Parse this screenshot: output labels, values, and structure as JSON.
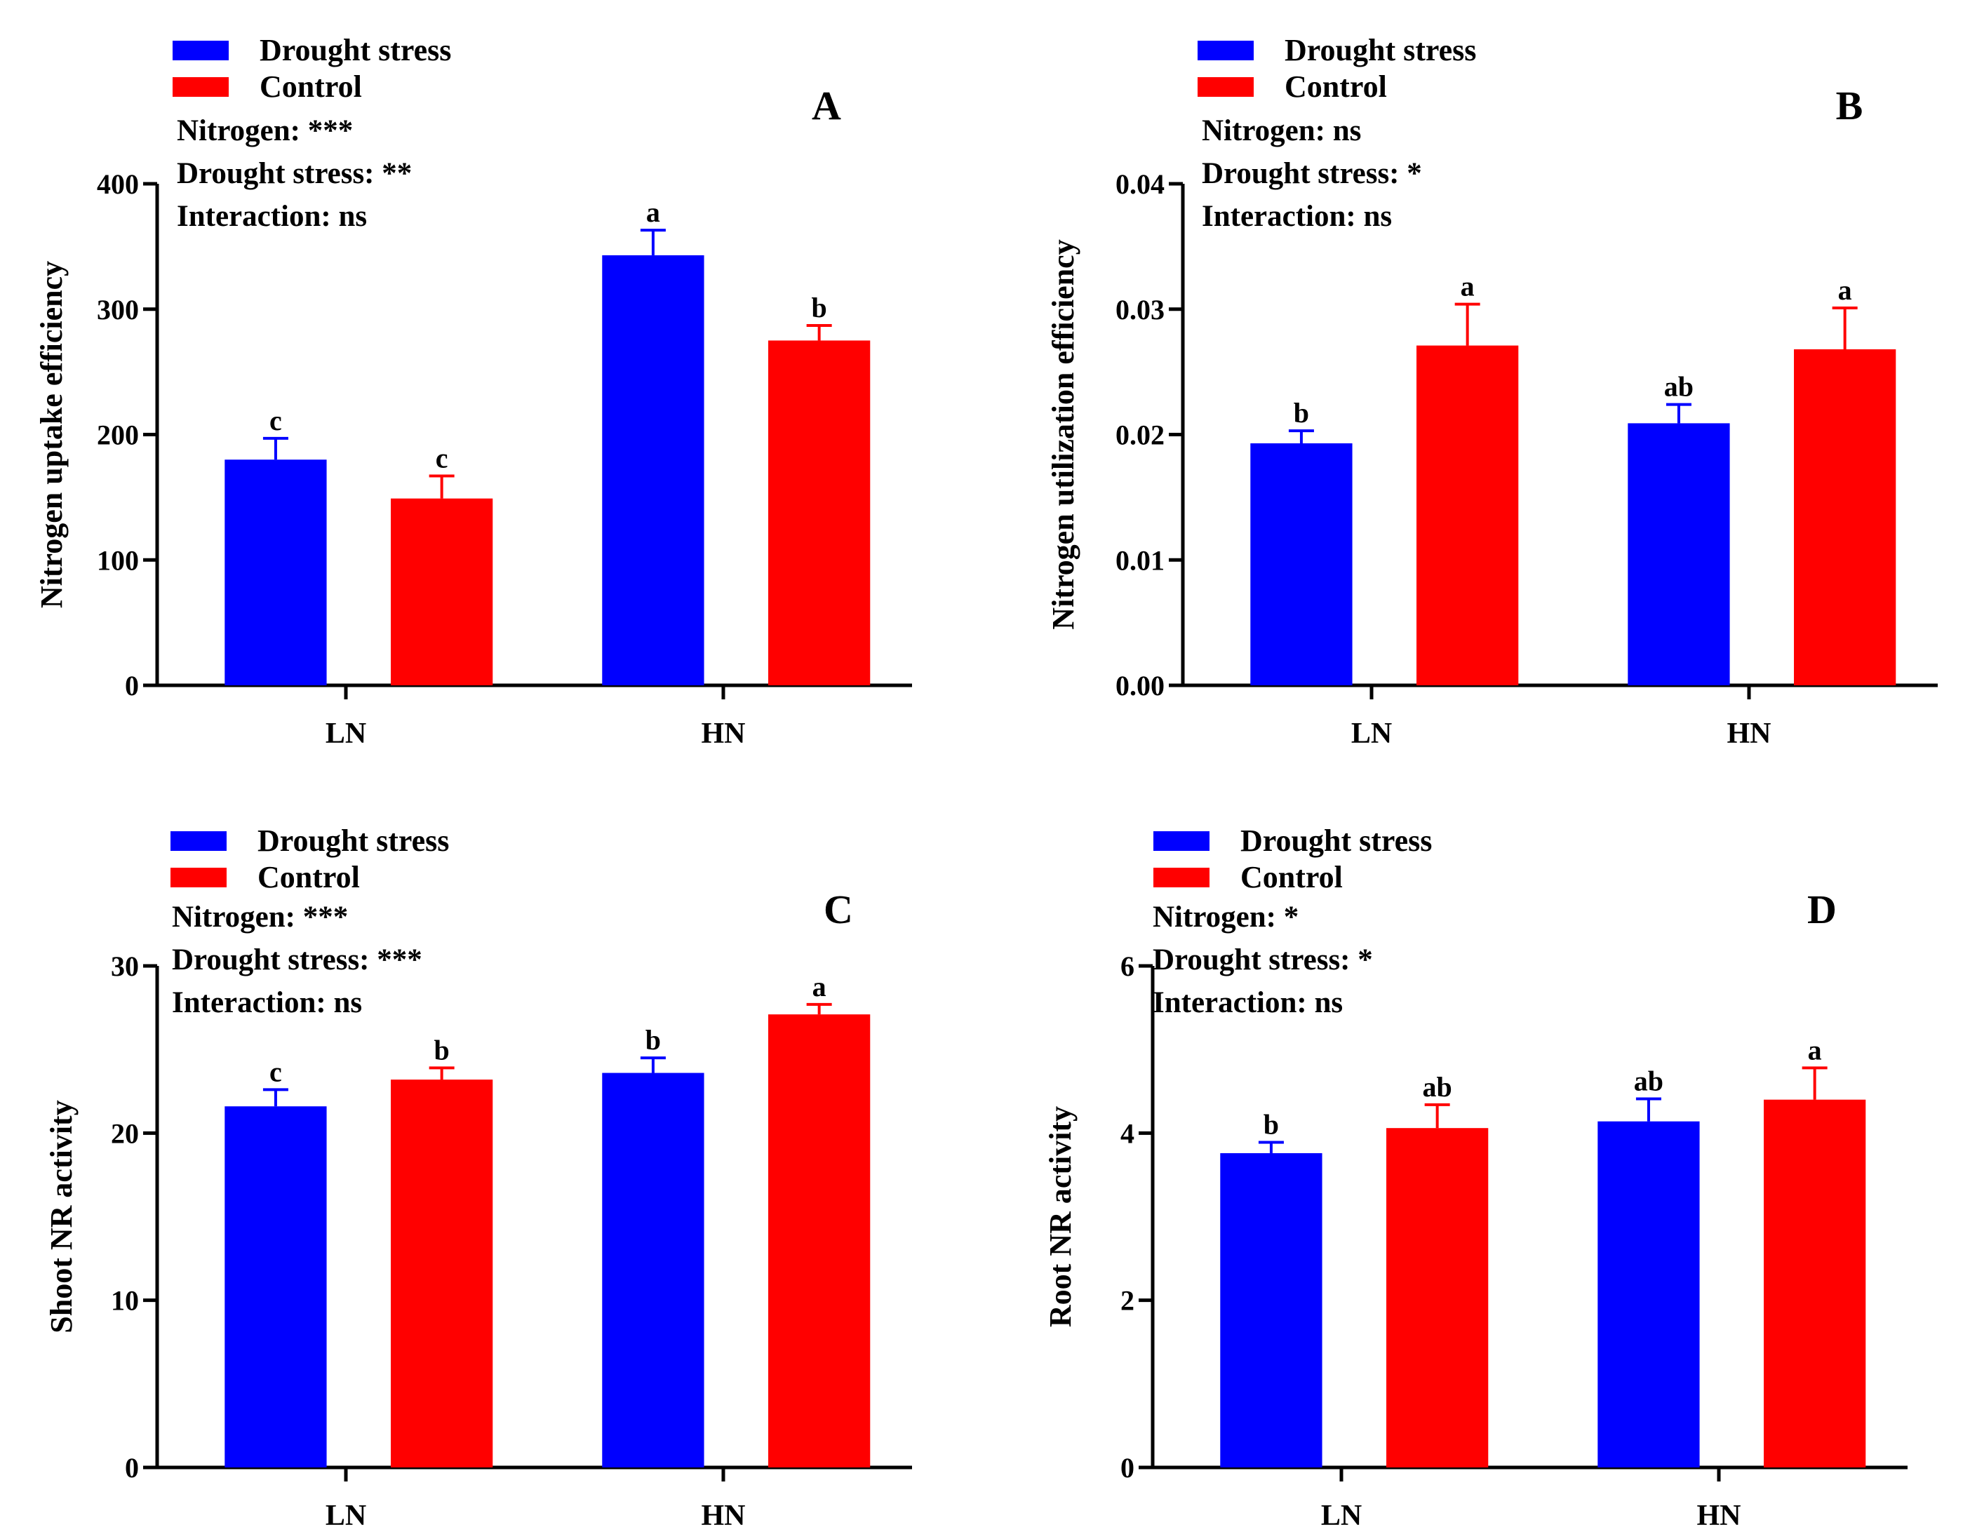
{
  "colors": {
    "drought": "#0000ff",
    "control": "#ff0000",
    "axis": "#000000"
  },
  "chart_data": [
    {
      "type": "bar",
      "panel": "A",
      "ylabel": "Nitrogen uptake efficiency",
      "categories": [
        "LN",
        "HN"
      ],
      "ylim": [
        0,
        400
      ],
      "yticks": [
        "0",
        "100",
        "200",
        "300",
        "400"
      ],
      "series": [
        {
          "name": "Drought stress",
          "values": [
            180,
            343
          ],
          "errors": [
            17,
            20
          ],
          "letters": [
            "c",
            "a"
          ]
        },
        {
          "name": "Control",
          "values": [
            149,
            275
          ],
          "errors": [
            18,
            12
          ],
          "letters": [
            "c",
            "b"
          ]
        }
      ],
      "stats": [
        "Nitrogen: ***",
        "Drought stress: **",
        "Interaction: ns"
      ],
      "legend": [
        "Drought stress",
        "Control"
      ]
    },
    {
      "type": "bar",
      "panel": "B",
      "ylabel": "Nitrogen utilization efficiency",
      "categories": [
        "LN",
        "HN"
      ],
      "ylim": [
        0,
        0.04
      ],
      "yticks": [
        "0.00",
        "0.01",
        "0.02",
        "0.03",
        "0.04"
      ],
      "series": [
        {
          "name": "Drought stress",
          "values": [
            0.0193,
            0.0209
          ],
          "errors": [
            0.001,
            0.0015
          ],
          "letters": [
            "b",
            "ab"
          ]
        },
        {
          "name": "Control",
          "values": [
            0.0271,
            0.0268
          ],
          "errors": [
            0.0033,
            0.0033
          ],
          "letters": [
            "a",
            "a"
          ]
        }
      ],
      "stats": [
        "Nitrogen: ns",
        "Drought stress: *",
        "Interaction: ns"
      ],
      "legend": [
        "Drought stress",
        "Control"
      ]
    },
    {
      "type": "bar",
      "panel": "C",
      "ylabel": "Shoot NR activity",
      "categories": [
        "LN",
        "HN"
      ],
      "ylim": [
        0,
        30
      ],
      "yticks": [
        "0",
        "10",
        "20",
        "30"
      ],
      "series": [
        {
          "name": "Drought stress",
          "values": [
            21.6,
            23.6
          ],
          "errors": [
            1.0,
            0.9
          ],
          "letters": [
            "c",
            "b"
          ]
        },
        {
          "name": "Control",
          "values": [
            23.2,
            27.1
          ],
          "errors": [
            0.7,
            0.6
          ],
          "letters": [
            "b",
            "a"
          ]
        }
      ],
      "stats": [
        "Nitrogen: ***",
        "Drought stress: ***",
        "Interaction: ns"
      ],
      "legend": [
        "Drought stress",
        "Control"
      ]
    },
    {
      "type": "bar",
      "panel": "D",
      "ylabel": "Root NR activity",
      "categories": [
        "LN",
        "HN"
      ],
      "ylim": [
        0,
        6
      ],
      "yticks": [
        "0",
        "2",
        "4",
        "6"
      ],
      "series": [
        {
          "name": "Drought stress",
          "values": [
            3.76,
            4.14
          ],
          "errors": [
            0.13,
            0.27
          ],
          "letters": [
            "b",
            "ab"
          ]
        },
        {
          "name": "Control",
          "values": [
            4.06,
            4.4
          ],
          "errors": [
            0.28,
            0.38
          ],
          "letters": [
            "ab",
            "a"
          ]
        }
      ],
      "stats": [
        "Nitrogen: *",
        "Drought stress: *",
        "Interaction: ns"
      ],
      "legend": [
        "Drought stress",
        "Control"
      ]
    }
  ]
}
